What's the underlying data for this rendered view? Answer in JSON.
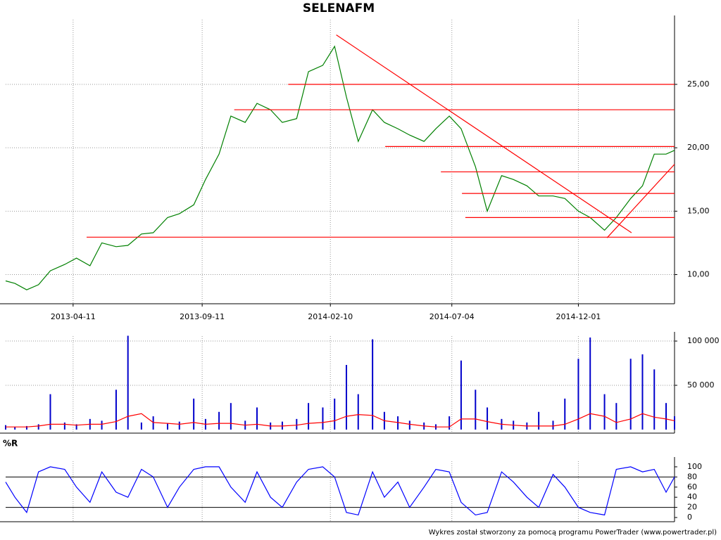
{
  "chart_data": [
    {
      "type": "line",
      "title": "SELENAFM",
      "x": [
        "2013-01-21",
        "2013-02-01",
        "2013-02-15",
        "2013-03-01",
        "2013-03-15",
        "2013-04-01",
        "2013-04-15",
        "2013-05-01",
        "2013-05-15",
        "2013-06-01",
        "2013-06-15",
        "2013-07-01",
        "2013-07-15",
        "2013-08-01",
        "2013-08-15",
        "2013-09-01",
        "2013-09-15",
        "2013-10-01",
        "2013-10-15",
        "2013-11-01",
        "2013-11-15",
        "2013-12-01",
        "2013-12-15",
        "2014-01-01",
        "2014-01-15",
        "2014-02-01",
        "2014-02-15",
        "2014-03-01",
        "2014-03-15",
        "2014-04-01",
        "2014-04-15",
        "2014-05-01",
        "2014-05-15",
        "2014-06-01",
        "2014-06-15",
        "2014-07-01",
        "2014-07-15",
        "2014-08-01",
        "2014-08-15",
        "2014-09-01",
        "2014-09-15",
        "2014-10-01",
        "2014-10-15",
        "2014-11-01",
        "2014-11-15",
        "2014-12-01",
        "2014-12-15",
        "2015-01-01",
        "2015-01-15",
        "2015-02-01",
        "2015-02-15",
        "2015-03-01",
        "2015-03-15",
        "2015-03-25"
      ],
      "xlim": [
        "2013-01-21",
        "2015-03-25"
      ],
      "xticks": [
        "2013-04-11",
        "2013-09-11",
        "2014-02-10",
        "2014-07-04",
        "2014-12-01"
      ],
      "series": [
        {
          "color": "#008000",
          "values": [
            9.5,
            9.3,
            8.8,
            9.2,
            10.3,
            10.8,
            11.3,
            10.7,
            12.5,
            12.2,
            12.3,
            13.2,
            13.3,
            14.5,
            14.8,
            15.5,
            17.5,
            19.5,
            22.5,
            22.0,
            23.5,
            23.0,
            22.0,
            22.3,
            26.0,
            26.5,
            28.0,
            24.0,
            20.5,
            23.0,
            22.0,
            21.5,
            21.0,
            20.5,
            21.5,
            22.5,
            21.5,
            18.5,
            15.0,
            17.8,
            17.5,
            17.0,
            16.2,
            16.2,
            16.0,
            15.0,
            14.5,
            13.5,
            14.5,
            16.0,
            17.0,
            19.5,
            19.5,
            19.8
          ]
        }
      ],
      "ylim": [
        7.7,
        30.1
      ],
      "yticks": [
        {
          "value": 10,
          "label": "10,00"
        },
        {
          "value": 15,
          "label": "15,00"
        },
        {
          "value": 20,
          "label": "20,00"
        },
        {
          "value": 25,
          "label": "25,00"
        }
      ],
      "grid": true,
      "lines": [
        {
          "color": "#ff0000",
          "x": [
            "2013-12-22",
            "2015-03-25"
          ],
          "values": [
            25.0,
            25.0
          ]
        },
        {
          "color": "#ff0000",
          "x": [
            "2013-10-19",
            "2015-03-25"
          ],
          "values": [
            23.0,
            23.0
          ]
        },
        {
          "color": "#ff0000",
          "x": [
            "2014-04-16",
            "2015-03-25"
          ],
          "values": [
            20.1,
            20.1
          ]
        },
        {
          "color": "#ff0000",
          "x": [
            "2014-06-21",
            "2015-03-25"
          ],
          "values": [
            18.1,
            18.1
          ]
        },
        {
          "color": "#ff0000",
          "x": [
            "2014-07-16",
            "2015-03-25"
          ],
          "values": [
            16.4,
            16.4
          ]
        },
        {
          "color": "#ff0000",
          "x": [
            "2014-07-20",
            "2015-03-25"
          ],
          "values": [
            14.5,
            14.5
          ]
        },
        {
          "color": "#ff0000",
          "x": [
            "2013-04-27",
            "2015-03-25"
          ],
          "values": [
            12.95,
            12.95
          ]
        },
        {
          "color": "#ff0000",
          "x": [
            "2014-02-17",
            "2015-02-02"
          ],
          "values": [
            28.9,
            13.3
          ]
        },
        {
          "color": "#ff0000",
          "x": [
            "2015-01-04",
            "2015-03-25"
          ],
          "values": [
            12.9,
            18.7
          ]
        }
      ]
    },
    {
      "type": "bar",
      "x": [
        "2013-01-21",
        "2013-02-01",
        "2013-02-15",
        "2013-03-01",
        "2013-03-15",
        "2013-04-01",
        "2013-04-15",
        "2013-05-01",
        "2013-05-15",
        "2013-06-01",
        "2013-06-15",
        "2013-07-01",
        "2013-07-15",
        "2013-08-01",
        "2013-08-15",
        "2013-09-01",
        "2013-09-15",
        "2013-10-01",
        "2013-10-15",
        "2013-11-01",
        "2013-11-15",
        "2013-12-01",
        "2013-12-15",
        "2014-01-01",
        "2014-01-15",
        "2014-02-01",
        "2014-02-15",
        "2014-03-01",
        "2014-03-15",
        "2014-04-01",
        "2014-04-15",
        "2014-05-01",
        "2014-05-15",
        "2014-06-01",
        "2014-06-15",
        "2014-07-01",
        "2014-07-15",
        "2014-08-01",
        "2014-08-15",
        "2014-09-01",
        "2014-09-15",
        "2014-10-01",
        "2014-10-15",
        "2014-11-01",
        "2014-11-15",
        "2014-12-01",
        "2014-12-15",
        "2015-01-01",
        "2015-01-15",
        "2015-02-01",
        "2015-02-15",
        "2015-03-01",
        "2015-03-15",
        "2015-03-25"
      ],
      "xlim": [
        "2013-01-21",
        "2015-03-25"
      ],
      "series": [
        {
          "color": "#0000cc",
          "values": [
            5000,
            3000,
            4000,
            6000,
            40000,
            8000,
            6000,
            12000,
            10000,
            45000,
            106000,
            8000,
            15000,
            7000,
            9000,
            35000,
            12000,
            20000,
            30000,
            10000,
            25000,
            8000,
            9000,
            12000,
            30000,
            25000,
            35000,
            73000,
            40000,
            102000,
            20000,
            15000,
            10000,
            8000,
            6000,
            15000,
            78000,
            45000,
            25000,
            12000,
            10000,
            8000,
            20000,
            10000,
            35000,
            80000,
            104000,
            40000,
            30000,
            80000,
            85000,
            68000,
            30000,
            15000
          ]
        },
        {
          "type": "line",
          "color": "#ff0000",
          "values": [
            3000,
            3000,
            3000,
            4000,
            6000,
            6000,
            5000,
            6000,
            6000,
            9000,
            15000,
            18000,
            8000,
            7000,
            6000,
            8000,
            6000,
            7000,
            7000,
            5000,
            6000,
            4000,
            4000,
            5000,
            7000,
            8000,
            10000,
            15000,
            17000,
            16000,
            10000,
            8000,
            6000,
            4000,
            3000,
            3000,
            12000,
            12000,
            9000,
            6000,
            5000,
            4000,
            4000,
            4000,
            6000,
            12000,
            18000,
            15000,
            8000,
            12000,
            18000,
            14000,
            12000,
            10000
          ]
        }
      ],
      "ylim": [
        -4000,
        105600
      ],
      "yticks": [
        {
          "value": 50000,
          "label": "50 000"
        },
        {
          "value": 100000,
          "label": "100 000"
        }
      ],
      "grid": true
    },
    {
      "type": "line",
      "title": "%R",
      "x": [
        "2013-01-21",
        "2013-02-01",
        "2013-02-15",
        "2013-03-01",
        "2013-03-15",
        "2013-04-01",
        "2013-04-15",
        "2013-05-01",
        "2013-05-15",
        "2013-06-01",
        "2013-06-15",
        "2013-07-01",
        "2013-07-15",
        "2013-08-01",
        "2013-08-15",
        "2013-09-01",
        "2013-09-15",
        "2013-10-01",
        "2013-10-15",
        "2013-11-01",
        "2013-11-15",
        "2013-12-01",
        "2013-12-15",
        "2014-01-01",
        "2014-01-15",
        "2014-02-01",
        "2014-02-15",
        "2014-03-01",
        "2014-03-15",
        "2014-04-01",
        "2014-04-15",
        "2014-05-01",
        "2014-05-15",
        "2014-06-01",
        "2014-06-15",
        "2014-07-01",
        "2014-07-15",
        "2014-08-01",
        "2014-08-15",
        "2014-09-01",
        "2014-09-15",
        "2014-10-01",
        "2014-10-15",
        "2014-11-01",
        "2014-11-15",
        "2014-12-01",
        "2014-12-15",
        "2015-01-01",
        "2015-01-15",
        "2015-02-01",
        "2015-02-15",
        "2015-03-01",
        "2015-03-15",
        "2015-03-25"
      ],
      "xlim": [
        "2013-01-21",
        "2015-03-25"
      ],
      "series": [
        {
          "color": "#0000ff",
          "values": [
            70,
            40,
            10,
            90,
            100,
            95,
            60,
            30,
            90,
            50,
            40,
            95,
            80,
            20,
            60,
            95,
            100,
            100,
            60,
            30,
            90,
            40,
            20,
            70,
            95,
            100,
            80,
            10,
            5,
            90,
            40,
            70,
            20,
            60,
            95,
            90,
            30,
            5,
            10,
            90,
            70,
            40,
            20,
            85,
            60,
            20,
            10,
            5,
            95,
            100,
            90,
            95,
            50,
            80
          ]
        }
      ],
      "ylim": [
        -8.3,
        111
      ],
      "yticks": [
        0,
        20,
        40,
        60,
        80,
        100
      ],
      "levels": [
        20,
        80
      ]
    }
  ],
  "footer": "Wykres został stworzony za pomocą programu PowerTrader (www.powertrader.pl)"
}
